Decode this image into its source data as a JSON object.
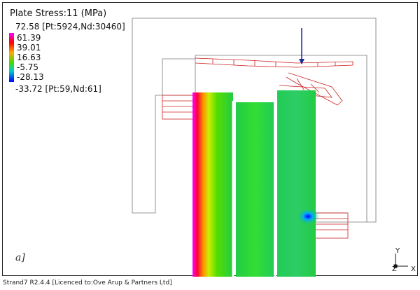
{
  "result": {
    "title": "Plate Stress:11  (MPa)",
    "max_label": "72.58 [Pt:5924,Nd:30460]",
    "min_label": "-33.72 [Pt:59,Nd:61]",
    "legend_ticks": [
      "61.39",
      "39.01",
      "16.63",
      "-5.75",
      "-28.13"
    ],
    "colors": {
      "max": "#ff00ff",
      "high": "#ff0000",
      "mid": "#44dd00",
      "low": "#00cccc",
      "min": "#0000ff"
    }
  },
  "figure_label": "a]",
  "axes": {
    "y": "Y",
    "z": "Z",
    "x": "X"
  },
  "status_bar": {
    "text": "Strand7 R2.4.4 [Licenced to:Ove Arup & Partners Ltd]"
  }
}
